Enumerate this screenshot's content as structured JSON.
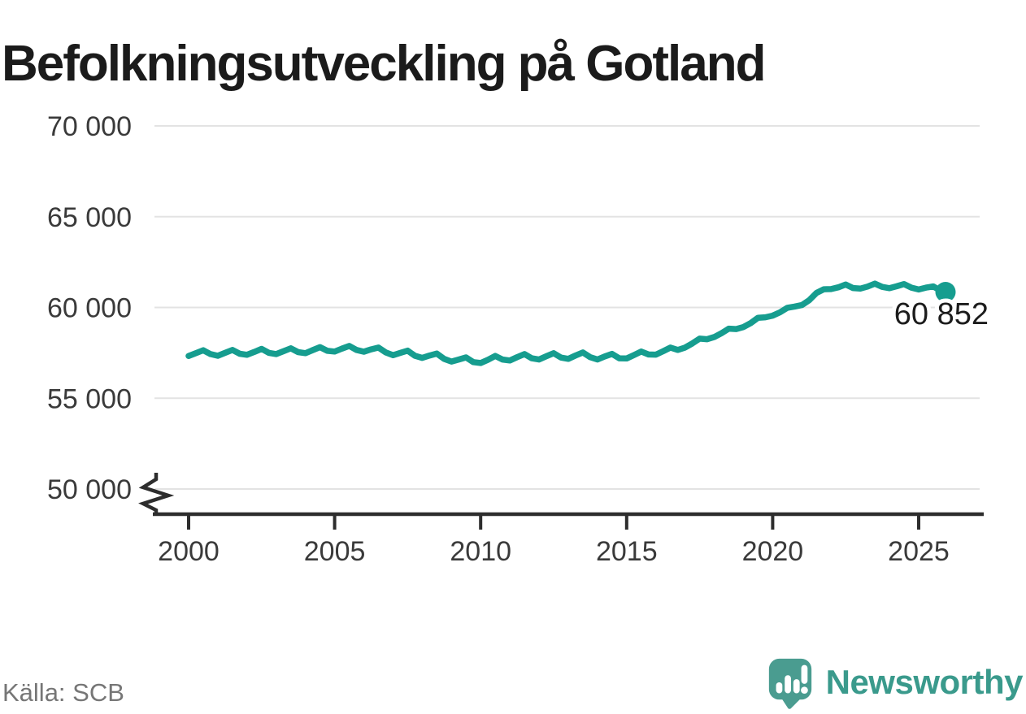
{
  "title": "Befolkningsutveckling på Gotland",
  "source": "Källa: SCB",
  "branding": {
    "wordmark": "Newsworthy",
    "logo_icon": "speech-bubble-bar-chart-exclamation"
  },
  "colors": {
    "line": "#169d8f",
    "logo": "#4a9c90",
    "wordmark": "#3a9a8c",
    "axis": "#2d2d2d",
    "grid": "#e3e3e3",
    "tick_text": "#3a3a3a",
    "value_text": "#1c1c1c",
    "muted_text": "#767676"
  },
  "chart_data": {
    "type": "line",
    "title": "Befolkningsutveckling på Gotland",
    "xlabel": "",
    "ylabel": "",
    "legend": "none",
    "grid": "horizontal",
    "x_range": [
      2000,
      2025.92
    ],
    "ylim": [
      49500,
      71500
    ],
    "y_axis_break": true,
    "x_ticks": [
      2000,
      2005,
      2010,
      2015,
      2020,
      2025
    ],
    "x_tick_labels": [
      "2000",
      "2005",
      "2010",
      "2015",
      "2020",
      "2025"
    ],
    "y_ticks": [
      50000,
      55000,
      60000,
      65000,
      70000
    ],
    "y_tick_labels": [
      "50 000",
      "55 000",
      "60 000",
      "65 000",
      "70 000"
    ],
    "last_value": 60852,
    "last_value_label": "60 852",
    "points": [
      [
        2000,
        57330
      ],
      [
        2000.25,
        57480
      ],
      [
        2000.5,
        57640
      ],
      [
        2000.75,
        57430
      ],
      [
        2001,
        57340
      ],
      [
        2001.25,
        57500
      ],
      [
        2001.5,
        57660
      ],
      [
        2001.75,
        57450
      ],
      [
        2002,
        57390
      ],
      [
        2002.25,
        57550
      ],
      [
        2002.5,
        57720
      ],
      [
        2002.75,
        57500
      ],
      [
        2003,
        57430
      ],
      [
        2003.25,
        57590
      ],
      [
        2003.5,
        57750
      ],
      [
        2003.75,
        57540
      ],
      [
        2004,
        57480
      ],
      [
        2004.25,
        57650
      ],
      [
        2004.5,
        57810
      ],
      [
        2004.75,
        57610
      ],
      [
        2005,
        57570
      ],
      [
        2005.25,
        57730
      ],
      [
        2005.5,
        57880
      ],
      [
        2005.75,
        57660
      ],
      [
        2006,
        57560
      ],
      [
        2006.25,
        57690
      ],
      [
        2006.5,
        57790
      ],
      [
        2006.75,
        57520
      ],
      [
        2007,
        57370
      ],
      [
        2007.25,
        57500
      ],
      [
        2007.5,
        57620
      ],
      [
        2007.75,
        57340
      ],
      [
        2008,
        57220
      ],
      [
        2008.25,
        57350
      ],
      [
        2008.5,
        57460
      ],
      [
        2008.75,
        57170
      ],
      [
        2009,
        57020
      ],
      [
        2009.25,
        57130
      ],
      [
        2009.5,
        57250
      ],
      [
        2009.75,
        56990
      ],
      [
        2010,
        56940
      ],
      [
        2010.25,
        57120
      ],
      [
        2010.5,
        57330
      ],
      [
        2010.75,
        57130
      ],
      [
        2011,
        57080
      ],
      [
        2011.25,
        57260
      ],
      [
        2011.5,
        57430
      ],
      [
        2011.75,
        57200
      ],
      [
        2012,
        57130
      ],
      [
        2012.25,
        57310
      ],
      [
        2012.5,
        57480
      ],
      [
        2012.75,
        57240
      ],
      [
        2013,
        57170
      ],
      [
        2013.25,
        57350
      ],
      [
        2013.5,
        57520
      ],
      [
        2013.75,
        57260
      ],
      [
        2014,
        57130
      ],
      [
        2014.25,
        57300
      ],
      [
        2014.5,
        57440
      ],
      [
        2014.75,
        57200
      ],
      [
        2015,
        57190
      ],
      [
        2015.25,
        57380
      ],
      [
        2015.5,
        57570
      ],
      [
        2015.75,
        57410
      ],
      [
        2016,
        57400
      ],
      [
        2016.25,
        57590
      ],
      [
        2016.5,
        57790
      ],
      [
        2016.75,
        57660
      ],
      [
        2017,
        57790
      ],
      [
        2017.25,
        58020
      ],
      [
        2017.5,
        58280
      ],
      [
        2017.75,
        58250
      ],
      [
        2018,
        58370
      ],
      [
        2018.25,
        58580
      ],
      [
        2018.5,
        58830
      ],
      [
        2018.75,
        58810
      ],
      [
        2019,
        58920
      ],
      [
        2019.25,
        59140
      ],
      [
        2019.5,
        59430
      ],
      [
        2019.75,
        59460
      ],
      [
        2020,
        59550
      ],
      [
        2020.25,
        59730
      ],
      [
        2020.5,
        59980
      ],
      [
        2020.75,
        60050
      ],
      [
        2021,
        60130
      ],
      [
        2021.25,
        60400
      ],
      [
        2021.5,
        60800
      ],
      [
        2021.75,
        61000
      ],
      [
        2022,
        61010
      ],
      [
        2022.25,
        61110
      ],
      [
        2022.5,
        61260
      ],
      [
        2022.75,
        61070
      ],
      [
        2023,
        61040
      ],
      [
        2023.25,
        61150
      ],
      [
        2023.5,
        61310
      ],
      [
        2023.75,
        61130
      ],
      [
        2024,
        61060
      ],
      [
        2024.25,
        61170
      ],
      [
        2024.5,
        61290
      ],
      [
        2024.75,
        61090
      ],
      [
        2025,
        60990
      ],
      [
        2025.25,
        61090
      ],
      [
        2025.5,
        61160
      ],
      [
        2025.75,
        60920
      ],
      [
        2025.92,
        60852
      ]
    ]
  }
}
